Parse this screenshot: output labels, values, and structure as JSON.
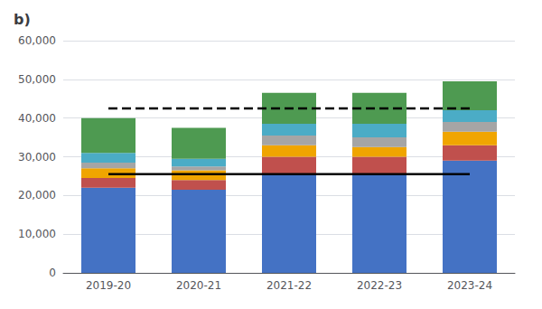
{
  "chart_data": {
    "type": "bar",
    "title": "b)",
    "categories": [
      "2019-20",
      "2020-21",
      "2021-22",
      "2022-23",
      "2023-24"
    ],
    "stacked": true,
    "series": [
      {
        "color": "#4472C4",
        "values": [
          22000,
          21500,
          25500,
          25500,
          29000
        ]
      },
      {
        "color": "#C0504D",
        "values": [
          2500,
          2500,
          4500,
          4500,
          4000
        ]
      },
      {
        "color": "#F0A500",
        "values": [
          2500,
          2500,
          3000,
          2500,
          3500
        ]
      },
      {
        "color": "#A5A5A5",
        "values": [
          1500,
          1000,
          2500,
          2500,
          2500
        ]
      },
      {
        "color": "#4BACC6",
        "values": [
          2500,
          2000,
          3000,
          3500,
          3000
        ]
      },
      {
        "color": "#4E9A51",
        "values": [
          9000,
          8000,
          8000,
          8000,
          7500
        ]
      },
      {
        "type": "line",
        "line_style": "dashed",
        "color": "#000000",
        "values": [
          42500,
          42500,
          42500,
          42500,
          42500
        ]
      },
      {
        "type": "line",
        "line_style": "solid",
        "color": "#000000",
        "values": [
          25500,
          25500,
          25500,
          25500,
          25500
        ]
      }
    ],
    "ylim": [
      0,
      60000
    ],
    "yticks": [
      0,
      {
        "value": 10000,
        "label": "10,000"
      },
      {
        "value": 20000,
        "label": "20,000"
      },
      {
        "value": 30000,
        "label": "30,000"
      },
      {
        "value": 40000,
        "label": "40,000"
      },
      {
        "value": 50000,
        "label": "50,000"
      },
      {
        "value": 60000,
        "label": "60,000"
      }
    ],
    "grid": true
  }
}
